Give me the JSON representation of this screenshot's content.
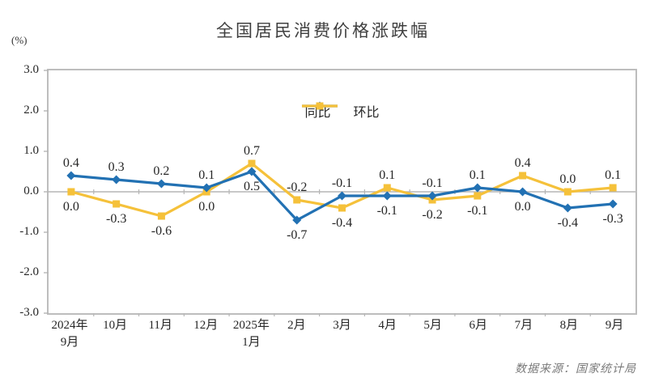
{
  "header": {
    "title": "全国居民消费价格涨跌幅"
  },
  "y_axis": {
    "unit_label": "(%)"
  },
  "legend": {
    "tongbi": "同比",
    "huanbi": "环比"
  },
  "footer": {
    "source": "数据来源：国家统计局"
  },
  "colors": {
    "tongbi": "#2271B3",
    "huanbi": "#F5C13A",
    "axis": "#b5b5b5",
    "data_label": "#262626"
  },
  "chart_data": {
    "type": "line",
    "title": "全国居民消费价格涨跌幅",
    "ylabel": "(%)",
    "xlabel": "",
    "categories": [
      "2024年\n9月",
      "10月",
      "11月",
      "12月",
      "2025年\n1月",
      "2月",
      "3月",
      "4月",
      "5月",
      "6月",
      "7月",
      "8月",
      "9月"
    ],
    "series": [
      {
        "name": "同比",
        "marker": "diamond",
        "color": "#2271B3",
        "values": [
          0.4,
          0.3,
          0.2,
          0.1,
          0.5,
          -0.7,
          -0.1,
          -0.1,
          -0.1,
          0.1,
          0.0,
          -0.4,
          -0.3
        ]
      },
      {
        "name": "环比",
        "marker": "square",
        "color": "#F5C13A",
        "values": [
          0.0,
          -0.3,
          -0.6,
          0.0,
          0.7,
          -0.2,
          -0.4,
          0.1,
          -0.2,
          -0.1,
          0.4,
          0.0,
          0.1
        ]
      }
    ],
    "ylim": [
      -3.0,
      3.0
    ],
    "ytick_labels": [
      "3.0",
      "2.0",
      "1.0",
      "0.0",
      "-1.0",
      "-2.0",
      "-3.0"
    ],
    "grid": false,
    "legend_position": "top-center",
    "data_labels": "on",
    "source_note": "数据来源：国家统计局"
  }
}
